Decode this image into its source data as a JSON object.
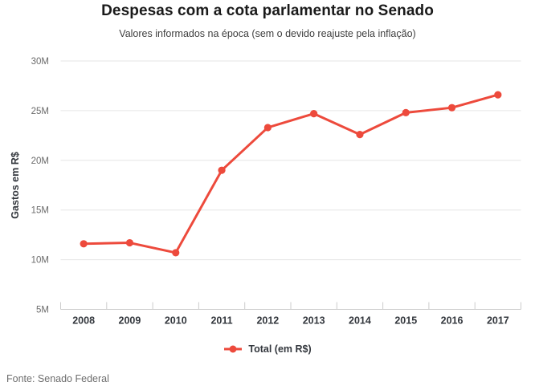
{
  "header": {
    "title": "Despesas com a cota parlamentar no Senado",
    "subtitle": "Valores informados na época (sem o devido reajuste pela inflação)"
  },
  "legend": {
    "label": "Total (em R$)"
  },
  "footer": {
    "source": "Fonte: Senado Federal"
  },
  "colors": {
    "line": "#ed4a3c",
    "marker": "#ed4a3c",
    "grid": "#e6e6e6",
    "axis": "#cccccc",
    "y_tick_label": "#6b6b6b",
    "x_tick_label": "#33373d",
    "title": "#1a1a1a",
    "subtitle": "#3f3f3f"
  },
  "chart_data": {
    "type": "line",
    "title": "Despesas com a cota parlamentar no Senado",
    "subtitle": "Valores informados na época (sem o devido reajuste pela inflação)",
    "xlabel": "",
    "ylabel": "Gastos em R$",
    "unit": "millions of R$",
    "categories": [
      "2008",
      "2009",
      "2010",
      "2011",
      "2012",
      "2013",
      "2014",
      "2015",
      "2016",
      "2017"
    ],
    "series": [
      {
        "name": "Total (em R$)",
        "values": [
          11.6,
          11.7,
          10.7,
          19.0,
          23.3,
          24.7,
          22.6,
          24.8,
          25.3,
          26.6
        ]
      }
    ],
    "ylim": [
      5,
      30
    ],
    "yticks": [
      {
        "value": 5,
        "label": "5M"
      },
      {
        "value": 10,
        "label": "10M"
      },
      {
        "value": 15,
        "label": "15M"
      },
      {
        "value": 20,
        "label": "20M"
      },
      {
        "value": 25,
        "label": "25M"
      },
      {
        "value": 30,
        "label": "30M"
      }
    ],
    "grid": "horizontal",
    "legend_position": "bottom",
    "marker": "circle"
  }
}
